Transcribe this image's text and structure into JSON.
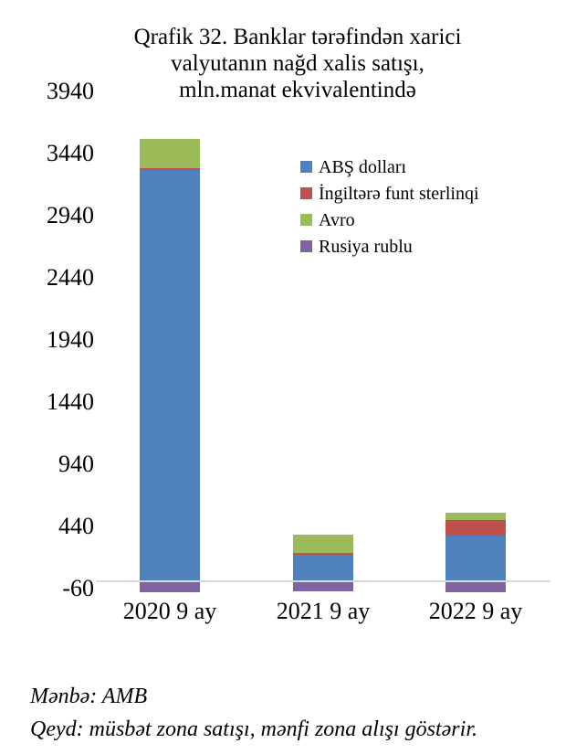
{
  "title": {
    "line1": "Qrafik 32. Banklar tərəfindən xarici",
    "line2": "valyutanın nağd xalis satışı,",
    "line3": "mln.manat ekvivalentində"
  },
  "footer": {
    "source": "Mənbə: AMB",
    "note": "Qeyd: müsbət zona satışı, mənfi zona alışı göstərir."
  },
  "chart_data": {
    "type": "bar",
    "stacked": true,
    "title": "Qrafik 32. Banklar tərəfindən xarici valyutanın nağd xalis satışı, mln.manat ekvivalentində",
    "categories": [
      "2020 9 ay",
      "2021 9 ay",
      "2022 9 ay"
    ],
    "series": [
      {
        "name": "ABŞ dolları",
        "color": "#4F81BD",
        "values": [
          3310,
          215,
          370
        ]
      },
      {
        "name": "İngiltərə funt sterlinqi",
        "color": "#C0504D",
        "values": [
          15,
          10,
          120
        ]
      },
      {
        "name": "Avro",
        "color": "#9BBB59",
        "values": [
          235,
          150,
          60
        ]
      },
      {
        "name": "Rusiya rublu",
        "color": "#8064A2",
        "values": [
          -90,
          -80,
          -90
        ]
      }
    ],
    "yticks": [
      3940,
      3440,
      2940,
      2440,
      1940,
      1440,
      940,
      440,
      -60
    ],
    "ylim": [
      -60,
      3940
    ],
    "grid": false,
    "legend_position": "inside-top-right",
    "baseline_color": "#D9D9D9",
    "text_color": "#000000"
  }
}
